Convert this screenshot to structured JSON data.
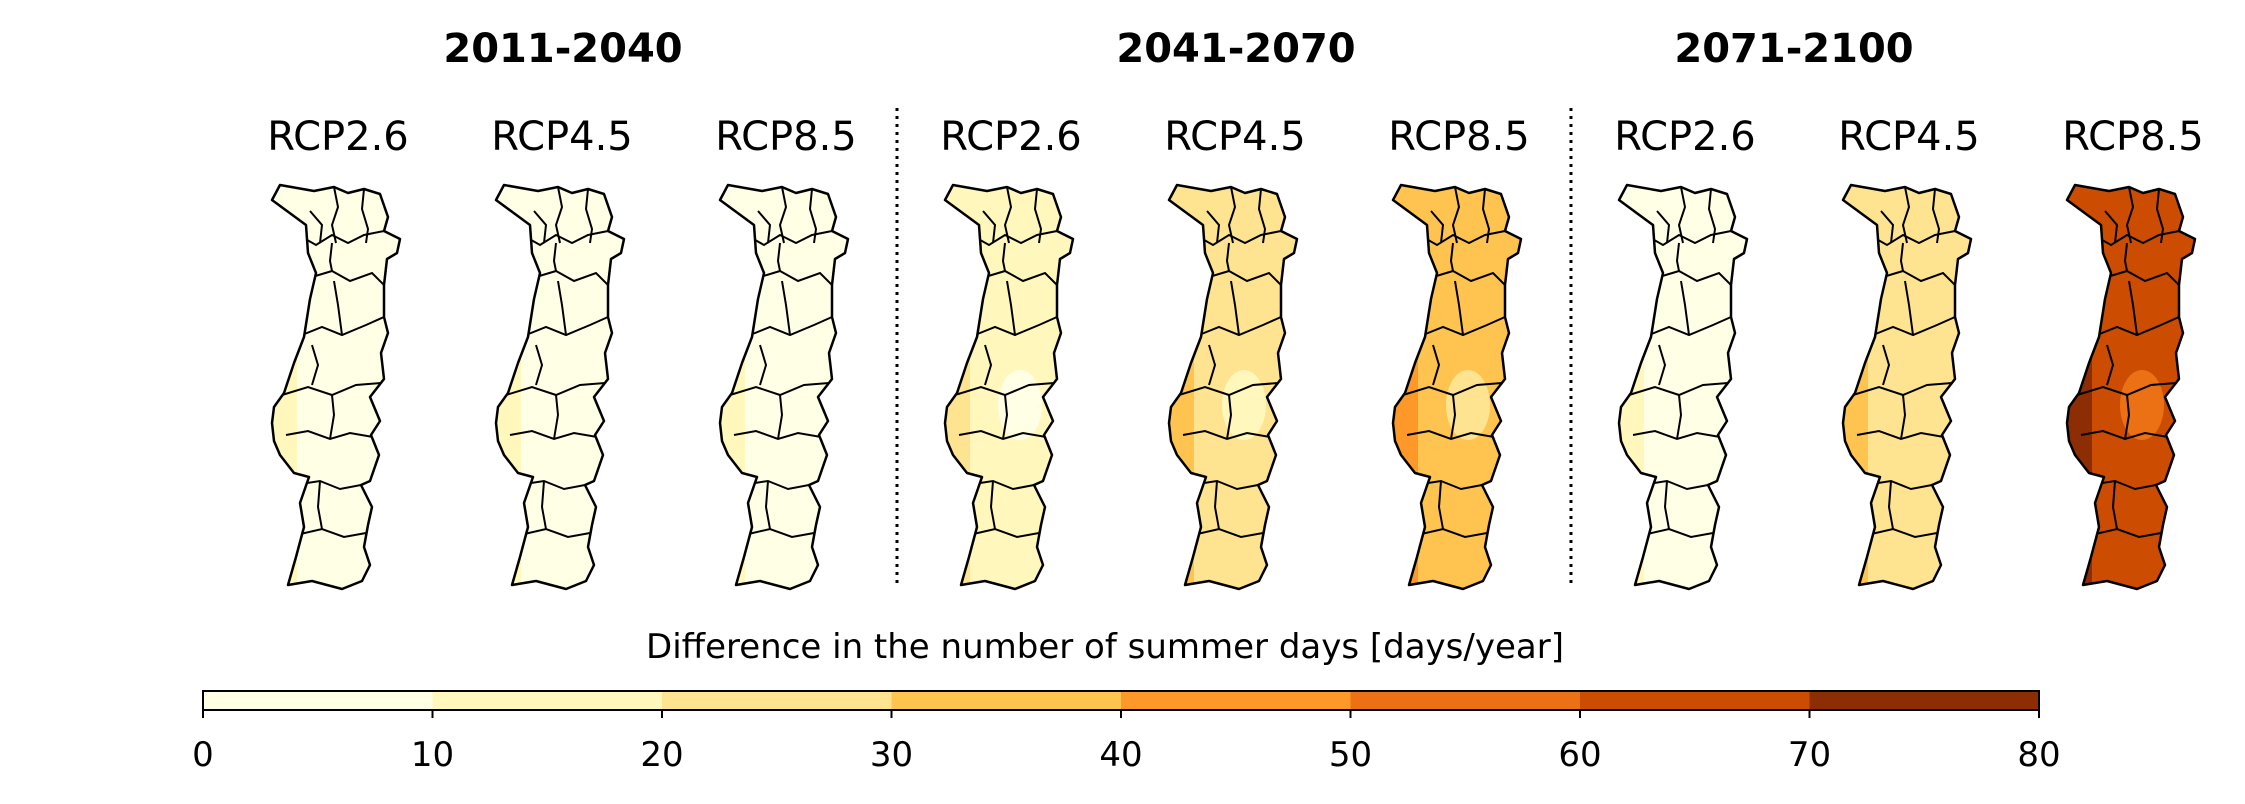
{
  "chart_data": {
    "type": "heatmap",
    "description_note": "",
    "periods": [
      {
        "label": "2011-2040",
        "panels": [
          {
            "scenario": "RCP2.6",
            "mean": 6,
            "min": 3,
            "max": 12
          },
          {
            "scenario": "RCP4.5",
            "mean": 7,
            "min": 4,
            "max": 14
          },
          {
            "scenario": "RCP8.5",
            "mean": 9,
            "min": 5,
            "max": 17
          }
        ]
      },
      {
        "label": "2041-2070",
        "panels": [
          {
            "scenario": "RCP2.6",
            "mean": 16,
            "min": 9,
            "max": 22
          },
          {
            "scenario": "RCP4.5",
            "mean": 22,
            "min": 14,
            "max": 32
          },
          {
            "scenario": "RCP8.5",
            "mean": 33,
            "min": 26,
            "max": 42
          }
        ]
      },
      {
        "label": "2071-2100",
        "panels": [
          {
            "scenario": "RCP2.6",
            "mean": 8,
            "min": 4,
            "max": 16
          },
          {
            "scenario": "RCP4.5",
            "mean": 28,
            "min": 20,
            "max": 38
          },
          {
            "scenario": "RCP8.5",
            "mean": 62,
            "min": 52,
            "max": 72
          }
        ]
      }
    ],
    "colorbar": {
      "label": "Difference in the number of summer days [days/year]",
      "ticks": [
        "0",
        "10",
        "20",
        "30",
        "40",
        "50",
        "60",
        "70",
        "80"
      ],
      "bounds": [
        0,
        10,
        20,
        30,
        40,
        50,
        60,
        70,
        80
      ],
      "colors": [
        "#ffffe5",
        "#fff7bc",
        "#fee391",
        "#fec44f",
        "#fe9929",
        "#ec7014",
        "#cc4c02",
        "#8c2d04"
      ]
    }
  }
}
